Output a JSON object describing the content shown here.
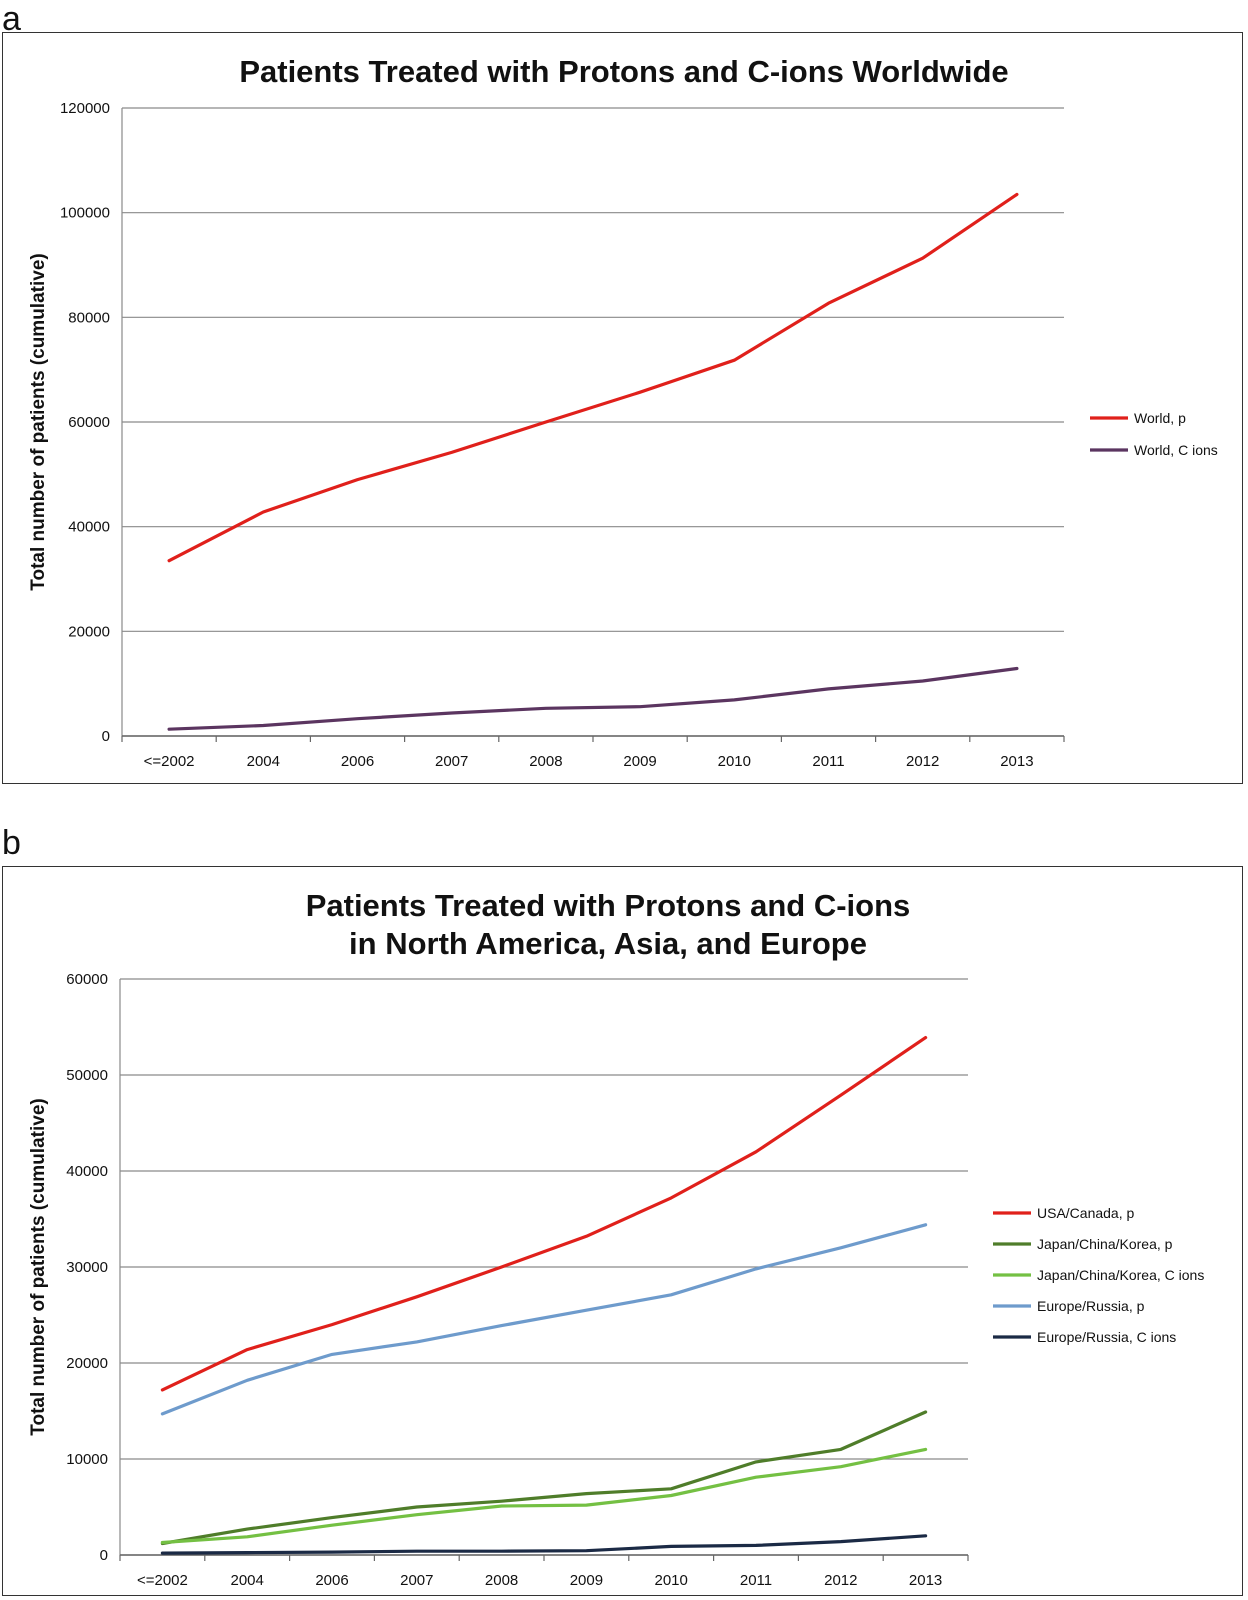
{
  "panels": {
    "a_letter": "a",
    "b_letter": "b"
  },
  "chart_data": [
    {
      "type": "line",
      "title": "Patients Treated with Protons and C-ions Worldwide",
      "title_lines": [
        "Patients Treated with Protons and C-ions Worldwide"
      ],
      "xlabel": "",
      "ylabel": "Total number of patients (cumulative)",
      "categories": [
        "<=2002",
        "2004",
        "2006",
        "2007",
        "2008",
        "2009",
        "2010",
        "2011",
        "2012",
        "2013"
      ],
      "ylim": [
        0,
        120000
      ],
      "yticks": [
        0,
        20000,
        40000,
        60000,
        80000,
        100000,
        120000
      ],
      "grid": "horizontal",
      "legend_position": "right",
      "series": [
        {
          "name": "World, p",
          "color": "#e0201b",
          "values": [
            33500,
            42800,
            49000,
            54200,
            60000,
            65700,
            71800,
            82700,
            91300,
            103500
          ]
        },
        {
          "name": "World, C ions",
          "color": "#5b3560",
          "values": [
            1300,
            2000,
            3300,
            4400,
            5300,
            5600,
            6900,
            9000,
            10500,
            12900
          ]
        }
      ]
    },
    {
      "type": "line",
      "title": "Patients Treated with Protons and C-ions in North America, Asia, and Europe",
      "title_lines": [
        "Patients Treated with Protons and C-ions",
        "in North America, Asia, and Europe"
      ],
      "xlabel": "",
      "ylabel": "Total number of patients (cumulative)",
      "categories": [
        "<=2002",
        "2004",
        "2006",
        "2007",
        "2008",
        "2009",
        "2010",
        "2011",
        "2012",
        "2013"
      ],
      "ylim": [
        0,
        60000
      ],
      "yticks": [
        0,
        10000,
        20000,
        30000,
        40000,
        50000,
        60000
      ],
      "grid": "horizontal",
      "legend_position": "right",
      "series": [
        {
          "name": "USA/Canada, p",
          "color": "#e0201b",
          "values": [
            17200,
            21400,
            24000,
            26900,
            30000,
            33200,
            37200,
            42000,
            47900,
            53900
          ]
        },
        {
          "name": "Japan/China/Korea, p",
          "color": "#4f7d2a",
          "values": [
            1200,
            2700,
            3900,
            5000,
            5600,
            6400,
            6900,
            9700,
            11000,
            14900
          ]
        },
        {
          "name": "Japan/China/Korea, C ions",
          "color": "#74c043",
          "values": [
            1300,
            1900,
            3100,
            4200,
            5100,
            5200,
            6200,
            8100,
            9200,
            11000
          ]
        },
        {
          "name": "Europe/Russia, p",
          "color": "#6e9bcc",
          "values": [
            14700,
            18200,
            20900,
            22200,
            23900,
            25500,
            27100,
            29800,
            32000,
            34400
          ]
        },
        {
          "name": "Europe/Russia, C ions",
          "color": "#1b2a45",
          "values": [
            200,
            250,
            300,
            400,
            400,
            450,
            900,
            1000,
            1400,
            2000
          ]
        }
      ]
    }
  ]
}
